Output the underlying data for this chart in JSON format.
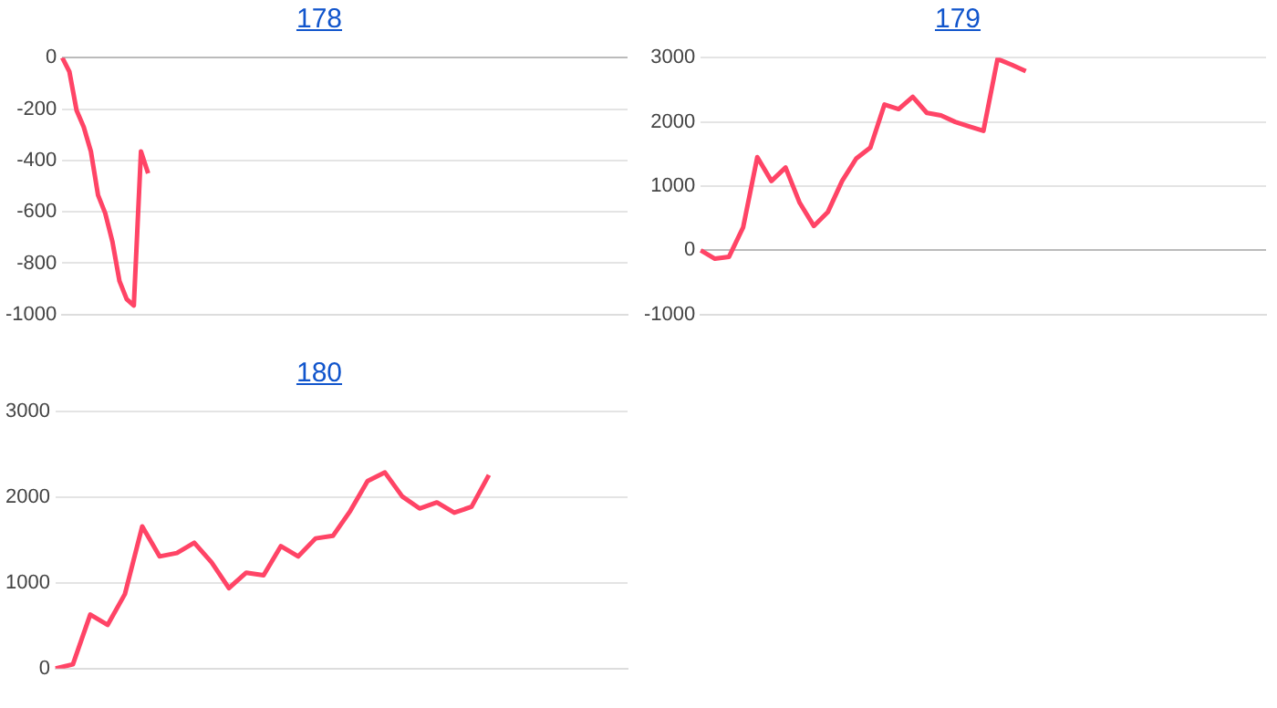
{
  "chart_data": [
    {
      "type": "line",
      "title": "178",
      "categories": [
        null,
        null,
        null,
        null,
        null,
        null,
        null,
        null,
        null,
        null,
        null,
        null,
        null,
        null,
        null,
        null,
        null,
        null,
        null,
        null,
        null,
        null,
        null,
        null,
        null,
        null,
        null,
        null,
        null,
        null,
        null,
        null,
        null,
        null,
        null,
        null,
        null,
        null,
        null,
        null,
        null,
        null,
        null,
        null,
        null,
        null,
        null,
        null,
        null,
        null,
        null,
        null,
        null,
        null,
        null,
        null,
        null,
        null,
        null,
        null,
        null,
        null,
        null,
        null,
        null,
        null,
        null,
        null,
        null,
        null,
        null,
        null,
        null,
        null,
        null,
        null,
        null,
        null,
        null,
        null
      ],
      "series": [
        {
          "color": "#ff4466",
          "values": [
            0,
            -55,
            -205,
            -270,
            -365,
            -535,
            -605,
            -715,
            -870,
            -940,
            -965,
            -365,
            -450,
            null,
            null,
            null,
            null,
            null,
            null,
            null,
            null,
            null,
            null,
            null,
            null,
            null,
            null,
            null,
            null,
            null,
            null,
            null,
            null,
            null,
            null,
            null,
            null,
            null,
            null,
            null,
            null,
            null,
            null,
            null,
            null,
            null,
            null,
            null,
            null,
            null,
            null,
            null,
            null,
            null,
            null,
            null,
            null,
            null,
            null,
            null,
            null,
            null,
            null,
            null,
            null,
            null,
            null,
            null,
            null,
            null,
            null,
            null,
            null,
            null,
            null,
            null,
            null,
            null,
            null,
            null
          ]
        }
      ],
      "ylim": [
        -1000,
        0
      ],
      "yticks": [
        -1000,
        -800,
        -600,
        -400,
        -200,
        0
      ],
      "grid": "y",
      "tick_labels": "y",
      "marker": "none"
    },
    {
      "type": "line",
      "title": "179",
      "categories": [
        null,
        null,
        null,
        null,
        null,
        null,
        null,
        null,
        null,
        null,
        null,
        null,
        null,
        null,
        null,
        null,
        null,
        null,
        null,
        null,
        null,
        null,
        null,
        null,
        null,
        null,
        null,
        null,
        null,
        null,
        null,
        null,
        null,
        null,
        null,
        null,
        null,
        null,
        null,
        null,
        null
      ],
      "series": [
        {
          "color": "#ff4466",
          "values": [
            0,
            -130,
            -100,
            360,
            1450,
            1080,
            1290,
            740,
            380,
            600,
            1080,
            1430,
            1600,
            2270,
            2200,
            2390,
            2140,
            2100,
            2000,
            1930,
            1860,
            2980,
            2890,
            2790,
            null,
            null,
            null,
            null,
            null,
            null,
            null,
            null,
            null,
            null,
            null,
            null,
            null,
            null,
            null,
            null,
            null
          ]
        }
      ],
      "ylim": [
        -1000,
        3000
      ],
      "yticks": [
        -1000,
        0,
        1000,
        2000,
        3000
      ],
      "grid": "y",
      "tick_labels": "y",
      "marker": "none"
    },
    {
      "type": "line",
      "title": "180",
      "categories": [
        null,
        null,
        null,
        null,
        null,
        null,
        null,
        null,
        null,
        null,
        null,
        null,
        null,
        null,
        null,
        null,
        null,
        null,
        null,
        null,
        null,
        null,
        null,
        null,
        null,
        null,
        null,
        null,
        null,
        null,
        null,
        null,
        null,
        null
      ],
      "series": [
        {
          "color": "#ff4466",
          "values": [
            0,
            50,
            630,
            510,
            870,
            1660,
            1310,
            1350,
            1470,
            1240,
            940,
            1120,
            1090,
            1430,
            1310,
            1520,
            1550,
            1840,
            2190,
            2290,
            2010,
            1870,
            1940,
            1820,
            1890,
            2260,
            null,
            null,
            null,
            null,
            null,
            null,
            null,
            null
          ]
        }
      ],
      "ylim": [
        0,
        3000
      ],
      "yticks": [
        0,
        1000,
        2000,
        3000
      ],
      "grid": "y",
      "tick_labels": "y",
      "marker": "none"
    }
  ]
}
